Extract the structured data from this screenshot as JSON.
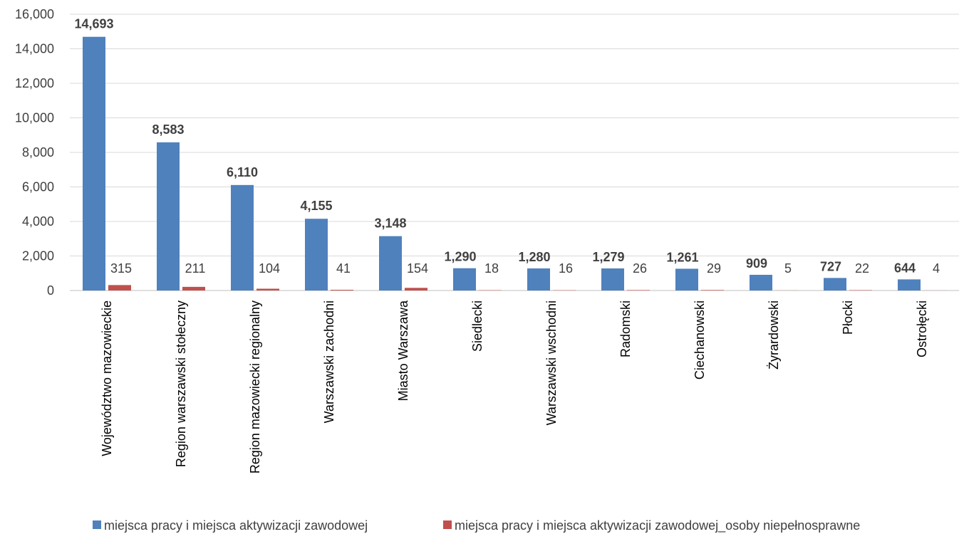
{
  "chart_data": {
    "type": "bar",
    "categories": [
      "Województwo mazowieckie",
      "Region warszawski stołeczny",
      "Region mazowiecki regionalny",
      "Warszawski zachodni",
      "Miasto Warszawa",
      "Siedlecki",
      "Warszawski wschodni",
      "Radomski",
      "Ciechanowski",
      "Żyrardowski",
      "Płocki",
      "Ostrołęcki"
    ],
    "series": [
      {
        "name": "miejsca pracy i miejsca aktywizacji zawodowej",
        "color": "#4f81bd",
        "values": [
          14693,
          8583,
          6110,
          4155,
          3148,
          1290,
          1280,
          1279,
          1261,
          909,
          727,
          644
        ],
        "labels": [
          "14,693",
          "8,583",
          "6,110",
          "4,155",
          "3,148",
          "1,290",
          "1,280",
          "1,279",
          "1,261",
          "909",
          "727",
          "644"
        ]
      },
      {
        "name": "miejsca pracy i miejsca aktywizacji zawodowej_osoby niepełnosprawne",
        "color": "#c0504d",
        "values": [
          315,
          211,
          104,
          41,
          154,
          18,
          16,
          26,
          29,
          5,
          22,
          4
        ],
        "labels": [
          "315",
          "211",
          "104",
          "41",
          "154",
          "18",
          "16",
          "26",
          "29",
          "5",
          "22",
          "4"
        ]
      }
    ],
    "y_ticks": [
      "0",
      "2,000",
      "4,000",
      "6,000",
      "8,000",
      "10,000",
      "12,000",
      "14,000",
      "16,000"
    ],
    "ylim": [
      0,
      16000
    ],
    "grid": true,
    "legend_position": "bottom",
    "title": "",
    "xlabel": "",
    "ylabel": ""
  }
}
